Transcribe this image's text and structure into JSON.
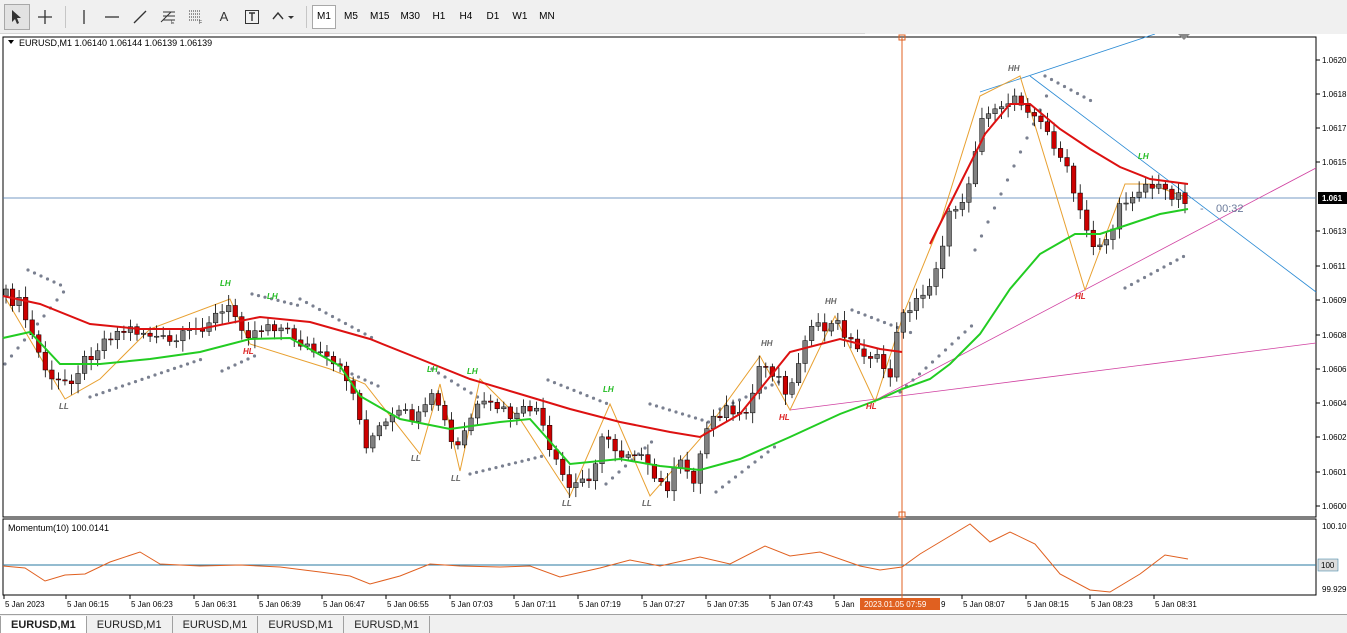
{
  "toolbar": {
    "tools": [
      "cursor-icon",
      "crosshair-icon",
      "vertical-line-icon",
      "horizontal-line-icon",
      "trendline-icon",
      "fibonacci-icon",
      "gann-grid-icon",
      "text-icon",
      "text-label-icon",
      "arrows-icon"
    ],
    "text_tool": "A",
    "timeframes": [
      "M1",
      "M5",
      "M15",
      "M30",
      "H1",
      "H4",
      "D1",
      "W1",
      "MN"
    ],
    "active_timeframe": "M1"
  },
  "chart": {
    "header": "EURUSD,M1  1.06140 1.06144 1.06139 1.06139",
    "countdown": "00:32",
    "price_labels": [
      "1.0620",
      "1.0618",
      "1.0617",
      "1.0615",
      "1.061",
      "1.0613",
      "1.0611",
      "1.0609",
      "1.0608",
      "1.0606",
      "1.0604",
      "1.0602",
      "1.0601",
      "1.0600"
    ],
    "current_price_label": "1.061",
    "time_labels": [
      "5 Jan 2023",
      "5 Jan 06:15",
      "5 Jan 06:23",
      "5 Jan 06:31",
      "5 Jan 06:39",
      "5 Jan 06:47",
      "5 Jan 06:55",
      "5 Jan 07:03",
      "5 Jan 07:11",
      "5 Jan 07:19",
      "5 Jan 07:27",
      "5 Jan 07:35",
      "5 Jan 07:43",
      "5 Jan",
      "5 Jan 08:07",
      "5 Jan 08:15",
      "5 Jan 08:23",
      "5 Jan 08:31"
    ],
    "crosshair_time": "2023.01.05 07:59",
    "crosshair_time_suffix": "9",
    "swing_labels": [
      "LL",
      "LH",
      "LH",
      "HL",
      "LL",
      "LL",
      "LH",
      "LH",
      "LL",
      "LH",
      "LL",
      "HH",
      "HL",
      "HH",
      "HL",
      "HH",
      "HL",
      "LH"
    ]
  },
  "momentum": {
    "header": "Momentum(10) 100.0141",
    "levels": [
      "100.10",
      "100",
      "99.929"
    ]
  },
  "tabs": [
    "EURUSD,M1",
    "EURUSD,M1",
    "EURUSD,M1",
    "EURUSD,M1",
    "EURUSD,M1"
  ],
  "colors": {
    "bull_candle": "#808080",
    "bear_candle": "#cc0000",
    "ma_red": "#dd1111",
    "ma_green": "#22cc22",
    "zigzag": "#e8a030",
    "psar": "#7a8090",
    "trend_blue": "#2a8ad4",
    "trend_magenta": "#d040a0",
    "crosshair": "#e06020",
    "momentum_line": "#e06020",
    "level_line": "#2a7aa0"
  }
}
